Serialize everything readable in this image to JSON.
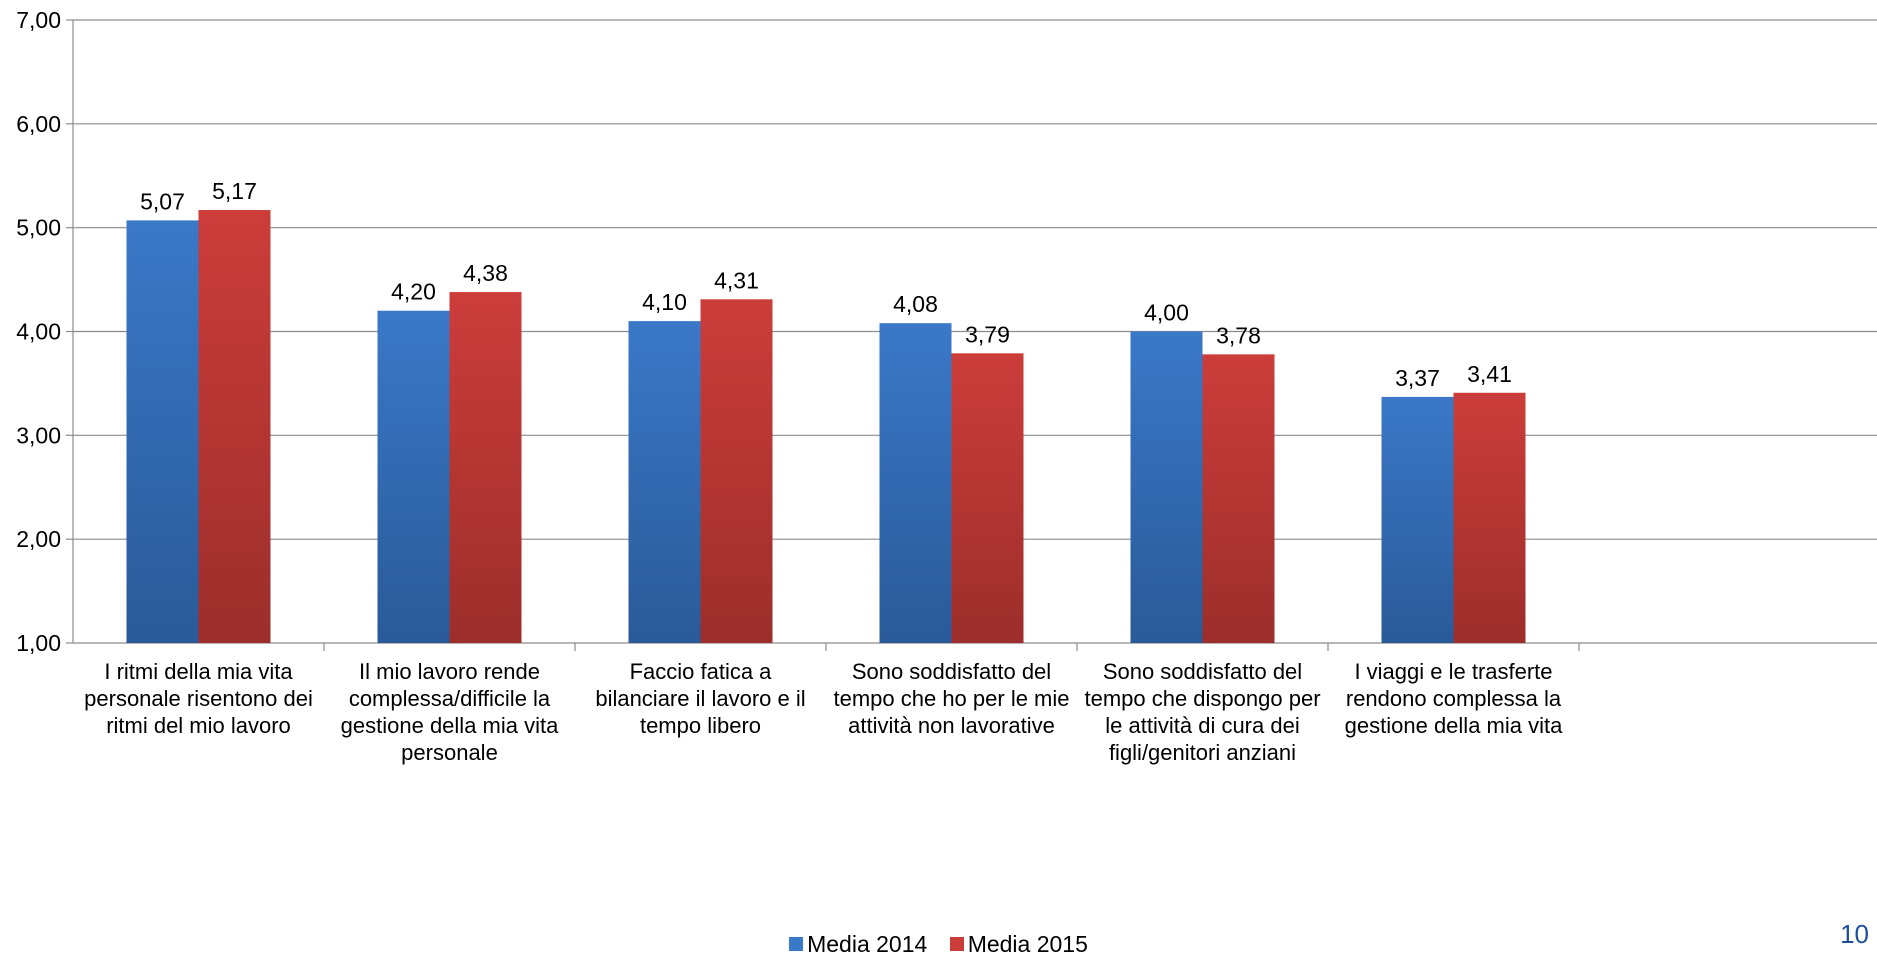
{
  "chart_data": {
    "type": "bar",
    "categories": [
      [
        "I ritmi della mia vita",
        "personale risentono dei",
        "ritmi del mio lavoro"
      ],
      [
        "Il mio lavoro rende",
        "complessa/difficile la",
        "gestione della mia vita",
        "personale"
      ],
      [
        "Faccio fatica a",
        "bilanciare il lavoro e il",
        "tempo libero"
      ],
      [
        "Sono soddisfatto del",
        "tempo che ho per le mie",
        "attività non lavorative"
      ],
      [
        "Sono soddisfatto del",
        "tempo che dispongo per",
        "le attività di cura dei",
        "figli/genitori anziani"
      ],
      [
        "I viaggi e le trasferte",
        "rendono complessa la",
        "gestione della mia vita"
      ]
    ],
    "series": [
      {
        "name": "Media 2014",
        "color": "#3a78c8",
        "color_dark": "#2a5a98",
        "values": [
          5.07,
          4.2,
          4.1,
          4.08,
          4.0,
          3.37
        ],
        "labels": [
          "5,07",
          "4,20",
          "4,10",
          "4,08",
          "4,00",
          "3,37"
        ]
      },
      {
        "name": "Media 2015",
        "color": "#cc3d3a",
        "color_dark": "#9c2e2b",
        "values": [
          5.17,
          4.38,
          4.31,
          3.79,
          3.78,
          3.41
        ],
        "labels": [
          "5,17",
          "4,38",
          "4,31",
          "3,79",
          "3,78",
          "3,41"
        ]
      }
    ],
    "ylim": [
      1,
      7
    ],
    "yticks": [
      1,
      2,
      3,
      4,
      5,
      6,
      7
    ],
    "ytick_labels": [
      "1,00",
      "2,00",
      "3,00",
      "4,00",
      "5,00",
      "6,00",
      "7,00"
    ],
    "grid": true,
    "legend_position": "bottom"
  },
  "page_number": "10"
}
